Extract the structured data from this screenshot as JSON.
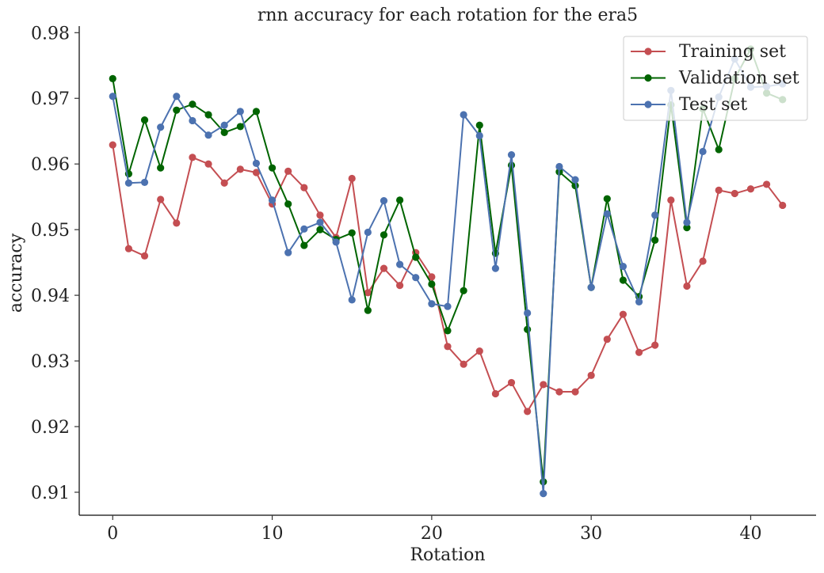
{
  "chart_data": {
    "type": "line",
    "title": "rnn accuracy for each rotation for the era5",
    "xlabel": "Rotation",
    "ylabel": "accuracy",
    "xlim": [
      -2.1,
      44.1
    ],
    "ylim": [
      0.9065,
      0.981
    ],
    "xticks": [
      0,
      10,
      20,
      30,
      40
    ],
    "yticks": [
      0.91,
      0.92,
      0.93,
      0.94,
      0.95,
      0.96,
      0.97,
      0.98
    ],
    "ytick_labels": [
      "0.91",
      "0.92",
      "0.93",
      "0.94",
      "0.95",
      "0.96",
      "0.97",
      "0.98"
    ],
    "legend_position": "upper right",
    "grid": false,
    "x": [
      0,
      1,
      2,
      3,
      4,
      5,
      6,
      7,
      8,
      9,
      10,
      11,
      12,
      13,
      14,
      15,
      16,
      17,
      18,
      19,
      20,
      21,
      22,
      23,
      24,
      25,
      26,
      27,
      28,
      29,
      30,
      31,
      32,
      33,
      34,
      35,
      36,
      37,
      38,
      39,
      40,
      41,
      42
    ],
    "series": [
      {
        "name": "Training set",
        "color": "#c44e52",
        "values": [
          0.9629,
          0.9471,
          0.946,
          0.9546,
          0.951,
          0.961,
          0.96,
          0.9571,
          0.9592,
          0.9587,
          0.9539,
          0.9589,
          0.9564,
          0.9522,
          0.9488,
          0.9578,
          0.9404,
          0.9441,
          0.9415,
          0.9465,
          0.9428,
          0.9322,
          0.9295,
          0.9315,
          0.925,
          0.9267,
          0.9223,
          0.9264,
          0.9253,
          0.9253,
          0.9278,
          0.9333,
          0.9371,
          0.9313,
          0.9324,
          0.9545,
          0.9414,
          0.9452,
          0.956,
          0.9555,
          0.9562,
          0.9569,
          0.9537
        ]
      },
      {
        "name": "Validation set",
        "color": "#006400",
        "values": [
          0.973,
          0.9585,
          0.9667,
          0.9594,
          0.9682,
          0.9691,
          0.9675,
          0.9648,
          0.9657,
          0.968,
          0.9594,
          0.9539,
          0.9476,
          0.95,
          0.9485,
          0.9495,
          0.9377,
          0.9492,
          0.9545,
          0.9458,
          0.9417,
          0.9346,
          0.9407,
          0.9659,
          0.9464,
          0.9598,
          0.9348,
          0.9116,
          0.9588,
          0.9567,
          0.9412,
          0.9547,
          0.9423,
          0.9398,
          0.9484,
          0.969,
          0.9503,
          0.9684,
          0.9622,
          0.973,
          0.9775,
          0.9708,
          0.9698
        ]
      },
      {
        "name": "Test set",
        "color": "#4c72b0",
        "values": [
          0.9703,
          0.9571,
          0.9572,
          0.9656,
          0.9703,
          0.9666,
          0.9644,
          0.9659,
          0.968,
          0.9601,
          0.9545,
          0.9465,
          0.9501,
          0.9511,
          0.9481,
          0.9393,
          0.9496,
          0.9544,
          0.9447,
          0.9427,
          0.9387,
          0.9383,
          0.9675,
          0.9643,
          0.9441,
          0.9614,
          0.9373,
          0.9098,
          0.9596,
          0.9576,
          0.9412,
          0.9524,
          0.9444,
          0.939,
          0.9522,
          0.9712,
          0.9511,
          0.9619,
          0.9702,
          0.976,
          0.9717,
          0.9718,
          0.9722
        ]
      }
    ]
  }
}
